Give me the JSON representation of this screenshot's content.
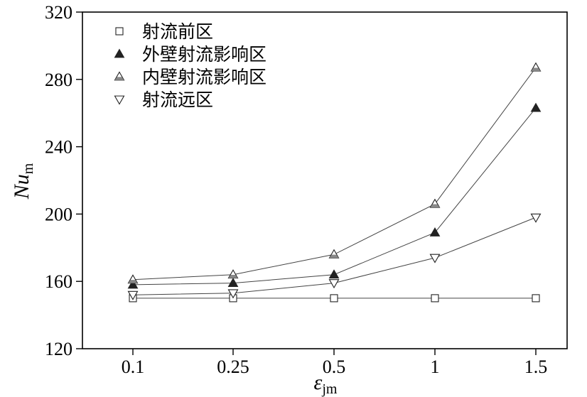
{
  "chart_data": {
    "type": "line",
    "categories": [
      "0.1",
      "0.25",
      "0.5",
      "1",
      "1.5"
    ],
    "ylim": [
      120,
      320
    ],
    "yticks": [
      120,
      160,
      200,
      240,
      280,
      320
    ],
    "xlabel": {
      "main": "ε",
      "sub": "jm"
    },
    "ylabel": {
      "main": "Nu",
      "sub": "m"
    },
    "grid": false,
    "legend_position": "top-left",
    "series": [
      {
        "name": "射流前区",
        "marker": "square-open",
        "values": [
          150,
          150,
          150,
          150,
          150
        ]
      },
      {
        "name": "外壁射流影响区",
        "marker": "triangle-up-filled",
        "values": [
          158,
          159,
          164,
          189,
          263
        ]
      },
      {
        "name": "内壁射流影响区",
        "marker": "triangle-up-half",
        "values": [
          161,
          164,
          176,
          206,
          287
        ]
      },
      {
        "name": "射流远区",
        "marker": "triangle-down-open",
        "values": [
          152,
          153,
          159,
          174,
          198
        ]
      }
    ],
    "colors": {
      "line": "#444444",
      "marker_edge": "#222222",
      "marker_fill": "#222222",
      "axis": "#000000"
    }
  }
}
